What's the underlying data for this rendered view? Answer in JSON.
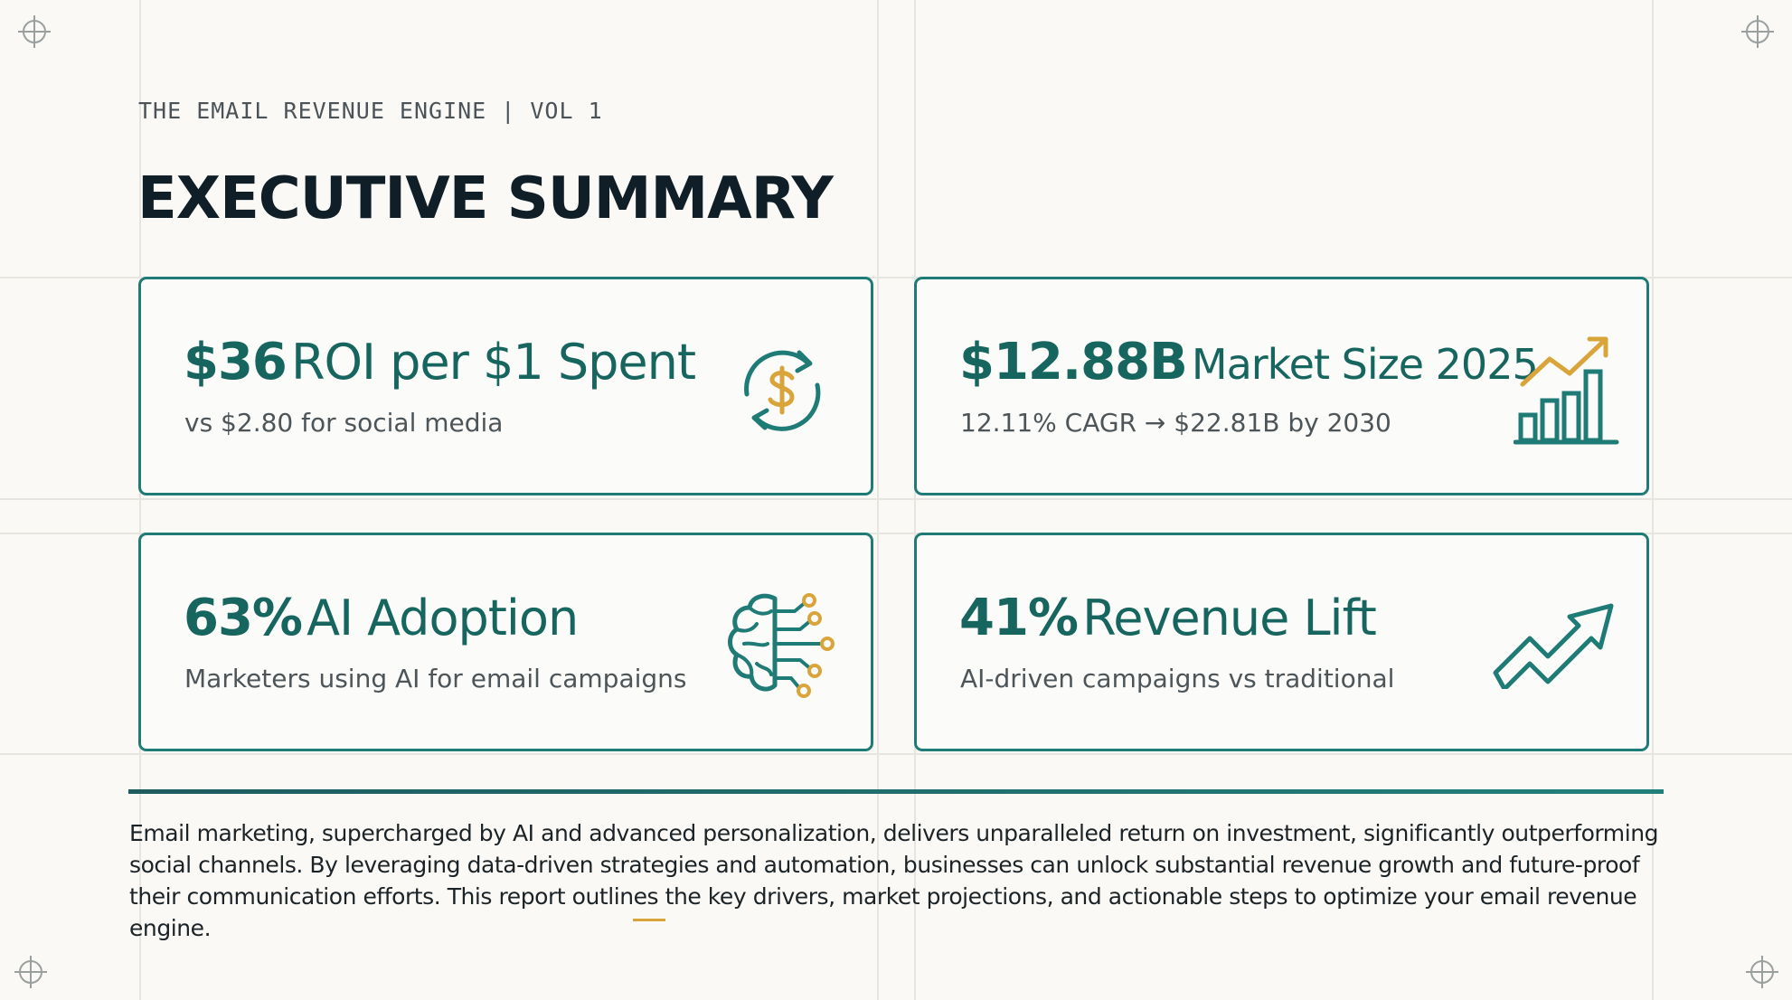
{
  "header": {
    "eyebrow": "THE EMAIL REVENUE ENGINE | VOL 1",
    "title": "EXECUTIVE SUMMARY"
  },
  "cards": [
    {
      "stat": "$36",
      "label": "ROI per $1 Spent",
      "sub": "vs $2.80 for social media",
      "icon": "dollar-cycle-icon"
    },
    {
      "stat": "$12.88B",
      "label": "Market Size 2025",
      "sub": "12.11% CAGR → $22.81B by 2030",
      "icon": "growth-bar-chart-icon"
    },
    {
      "stat": "63%",
      "label": "AI Adoption",
      "sub": "Marketers using AI for email campaigns",
      "icon": "ai-brain-circuit-icon"
    },
    {
      "stat": "41%",
      "label": "Revenue Lift",
      "sub": "AI-driven campaigns vs traditional",
      "icon": "trend-up-arrow-icon"
    }
  ],
  "summary": "Email marketing, supercharged by AI and advanced personalization, delivers unparalleled return on investment, significantly outperforming social channels. By leveraging data-driven strategies and automation, businesses can unlock substantial revenue growth and future-proof their communication efforts. This report outlines the key drivers, market projections, and actionable steps to optimize your email revenue engine.",
  "colors": {
    "teal": "#1f7b75",
    "teal_dark": "#17655f",
    "gold": "#d9a53a",
    "title": "#0f1e27",
    "background": "#faf9f6"
  }
}
